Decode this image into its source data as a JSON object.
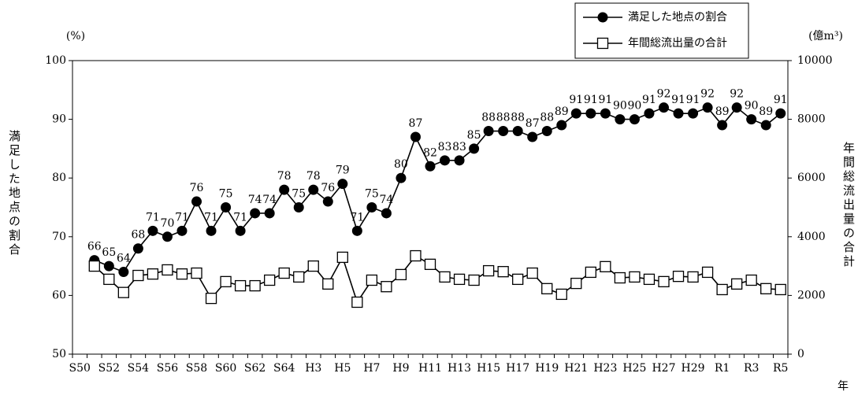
{
  "chart_data": {
    "type": "line",
    "y_axis_unit": "(%)",
    "y2_axis_unit": "(億m³)",
    "y_label": "満足した地点の割合",
    "y2_label": "年間総流出量の合計",
    "x_label": "年",
    "categories": [
      "S50",
      null,
      "S52",
      null,
      "S54",
      null,
      "S56",
      null,
      "S58",
      null,
      "S60",
      null,
      "S62",
      null,
      "S64",
      null,
      "H3",
      null,
      "H5",
      null,
      "H7",
      null,
      "H9",
      null,
      "H11",
      null,
      "H13",
      null,
      "H15",
      null,
      "H17",
      null,
      "H19",
      null,
      "H21",
      null,
      "H23",
      null,
      "H25",
      null,
      "H27",
      null,
      "H29",
      null,
      "R1",
      null,
      "R3",
      null,
      "R5"
    ],
    "series": [
      {
        "name": "満足した地点の割合",
        "color": "#000000",
        "marker": "circle",
        "values": [
          null,
          66,
          65,
          64,
          68,
          71,
          70,
          71,
          76,
          71,
          75,
          71,
          74,
          74,
          78,
          75,
          78,
          76,
          79,
          71,
          75,
          74,
          80,
          87,
          82,
          83,
          83,
          85,
          88,
          88,
          88,
          87,
          88,
          89,
          91,
          91,
          91,
          90,
          90,
          91,
          92,
          91,
          91,
          92,
          89,
          92,
          90,
          89,
          91
        ]
      },
      {
        "name": "年間総流出量の合計",
        "color": "#000000",
        "marker": "square",
        "axis": "y2",
        "values": [
          null,
          3000,
          2550,
          2100,
          2680,
          2730,
          2870,
          2730,
          2760,
          1900,
          2470,
          2330,
          2330,
          2520,
          2760,
          2630,
          3000,
          2390,
          3300,
          1770,
          2520,
          2300,
          2710,
          3350,
          3060,
          2630,
          2550,
          2520,
          2840,
          2810,
          2550,
          2760,
          2230,
          2040,
          2410,
          2790,
          2980,
          2600,
          2630,
          2550,
          2470,
          2650,
          2630,
          2790,
          2200,
          2390,
          2520,
          2230,
          2200
        ]
      }
    ],
    "ylim": [
      50,
      100
    ],
    "yticks": [
      50,
      60,
      70,
      80,
      90,
      100
    ],
    "y2lim": [
      0,
      10000
    ],
    "y2ticks": [
      0,
      2000,
      4000,
      6000,
      8000,
      10000
    ],
    "grid": false,
    "legend": "top-right",
    "data_labels": true
  }
}
